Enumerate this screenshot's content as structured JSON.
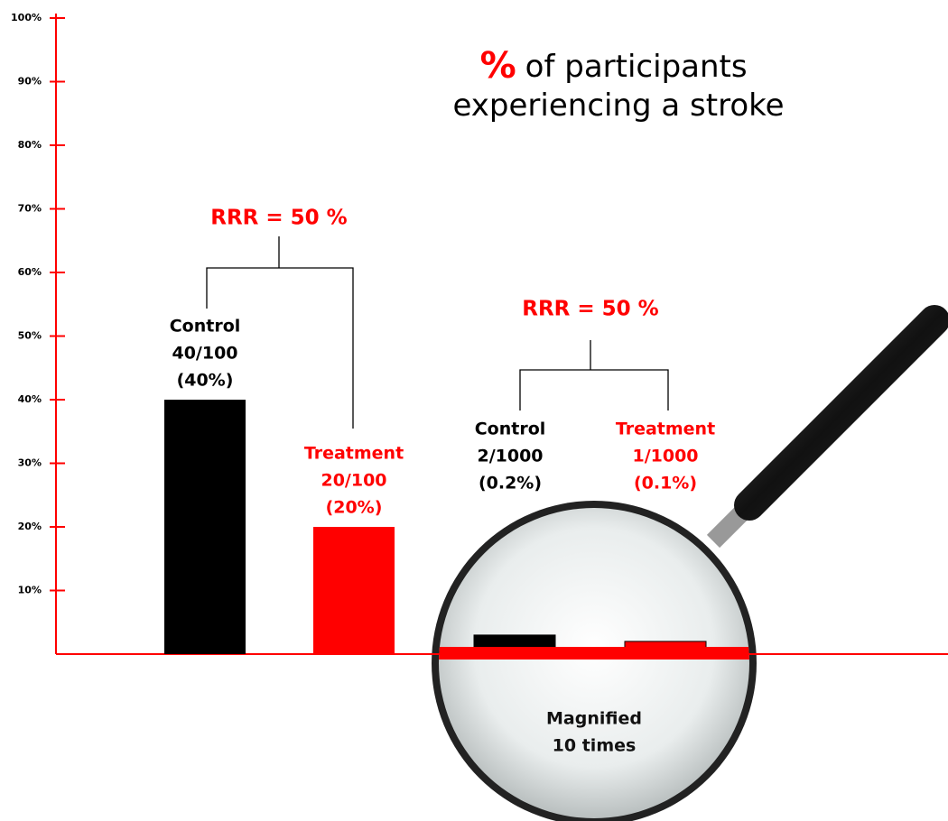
{
  "chart_data": {
    "type": "bar",
    "title_mark": "%",
    "title_lines": [
      "of participants",
      "experiencing a stroke"
    ],
    "ylim": [
      0,
      100
    ],
    "yticks": [
      {
        "value": 10,
        "label": "10%"
      },
      {
        "value": 20,
        "label": "20%"
      },
      {
        "value": 30,
        "label": "30%"
      },
      {
        "value": 40,
        "label": "40%"
      },
      {
        "value": 50,
        "label": "50%"
      },
      {
        "value": 60,
        "label": "60%"
      },
      {
        "value": 70,
        "label": "70%"
      },
      {
        "value": 80,
        "label": "80%"
      },
      {
        "value": 90,
        "label": "90%"
      },
      {
        "value": 100,
        "label": "100%"
      }
    ],
    "axis_color": "#ff0000",
    "comparisons": [
      {
        "label": "RRR = 50 %",
        "categories": [
          "Control",
          "Treatment"
        ],
        "counts": [
          "40/100",
          "20/100"
        ],
        "values": [
          40,
          20
        ],
        "value_labels": [
          "(40%)",
          "(20%)"
        ],
        "colors": [
          "#000000",
          "#ff0000"
        ]
      },
      {
        "label": "RRR = 50 %",
        "categories": [
          "Control",
          "Treatment"
        ],
        "counts": [
          "2/1000",
          "1/1000"
        ],
        "values": [
          0.2,
          0.1
        ],
        "value_labels": [
          "(0.2%)",
          "(0.1%)"
        ],
        "colors": [
          "#000000",
          "#ff0000"
        ],
        "magnification": 10,
        "note": [
          "Magnified",
          "10 times"
        ]
      }
    ]
  }
}
